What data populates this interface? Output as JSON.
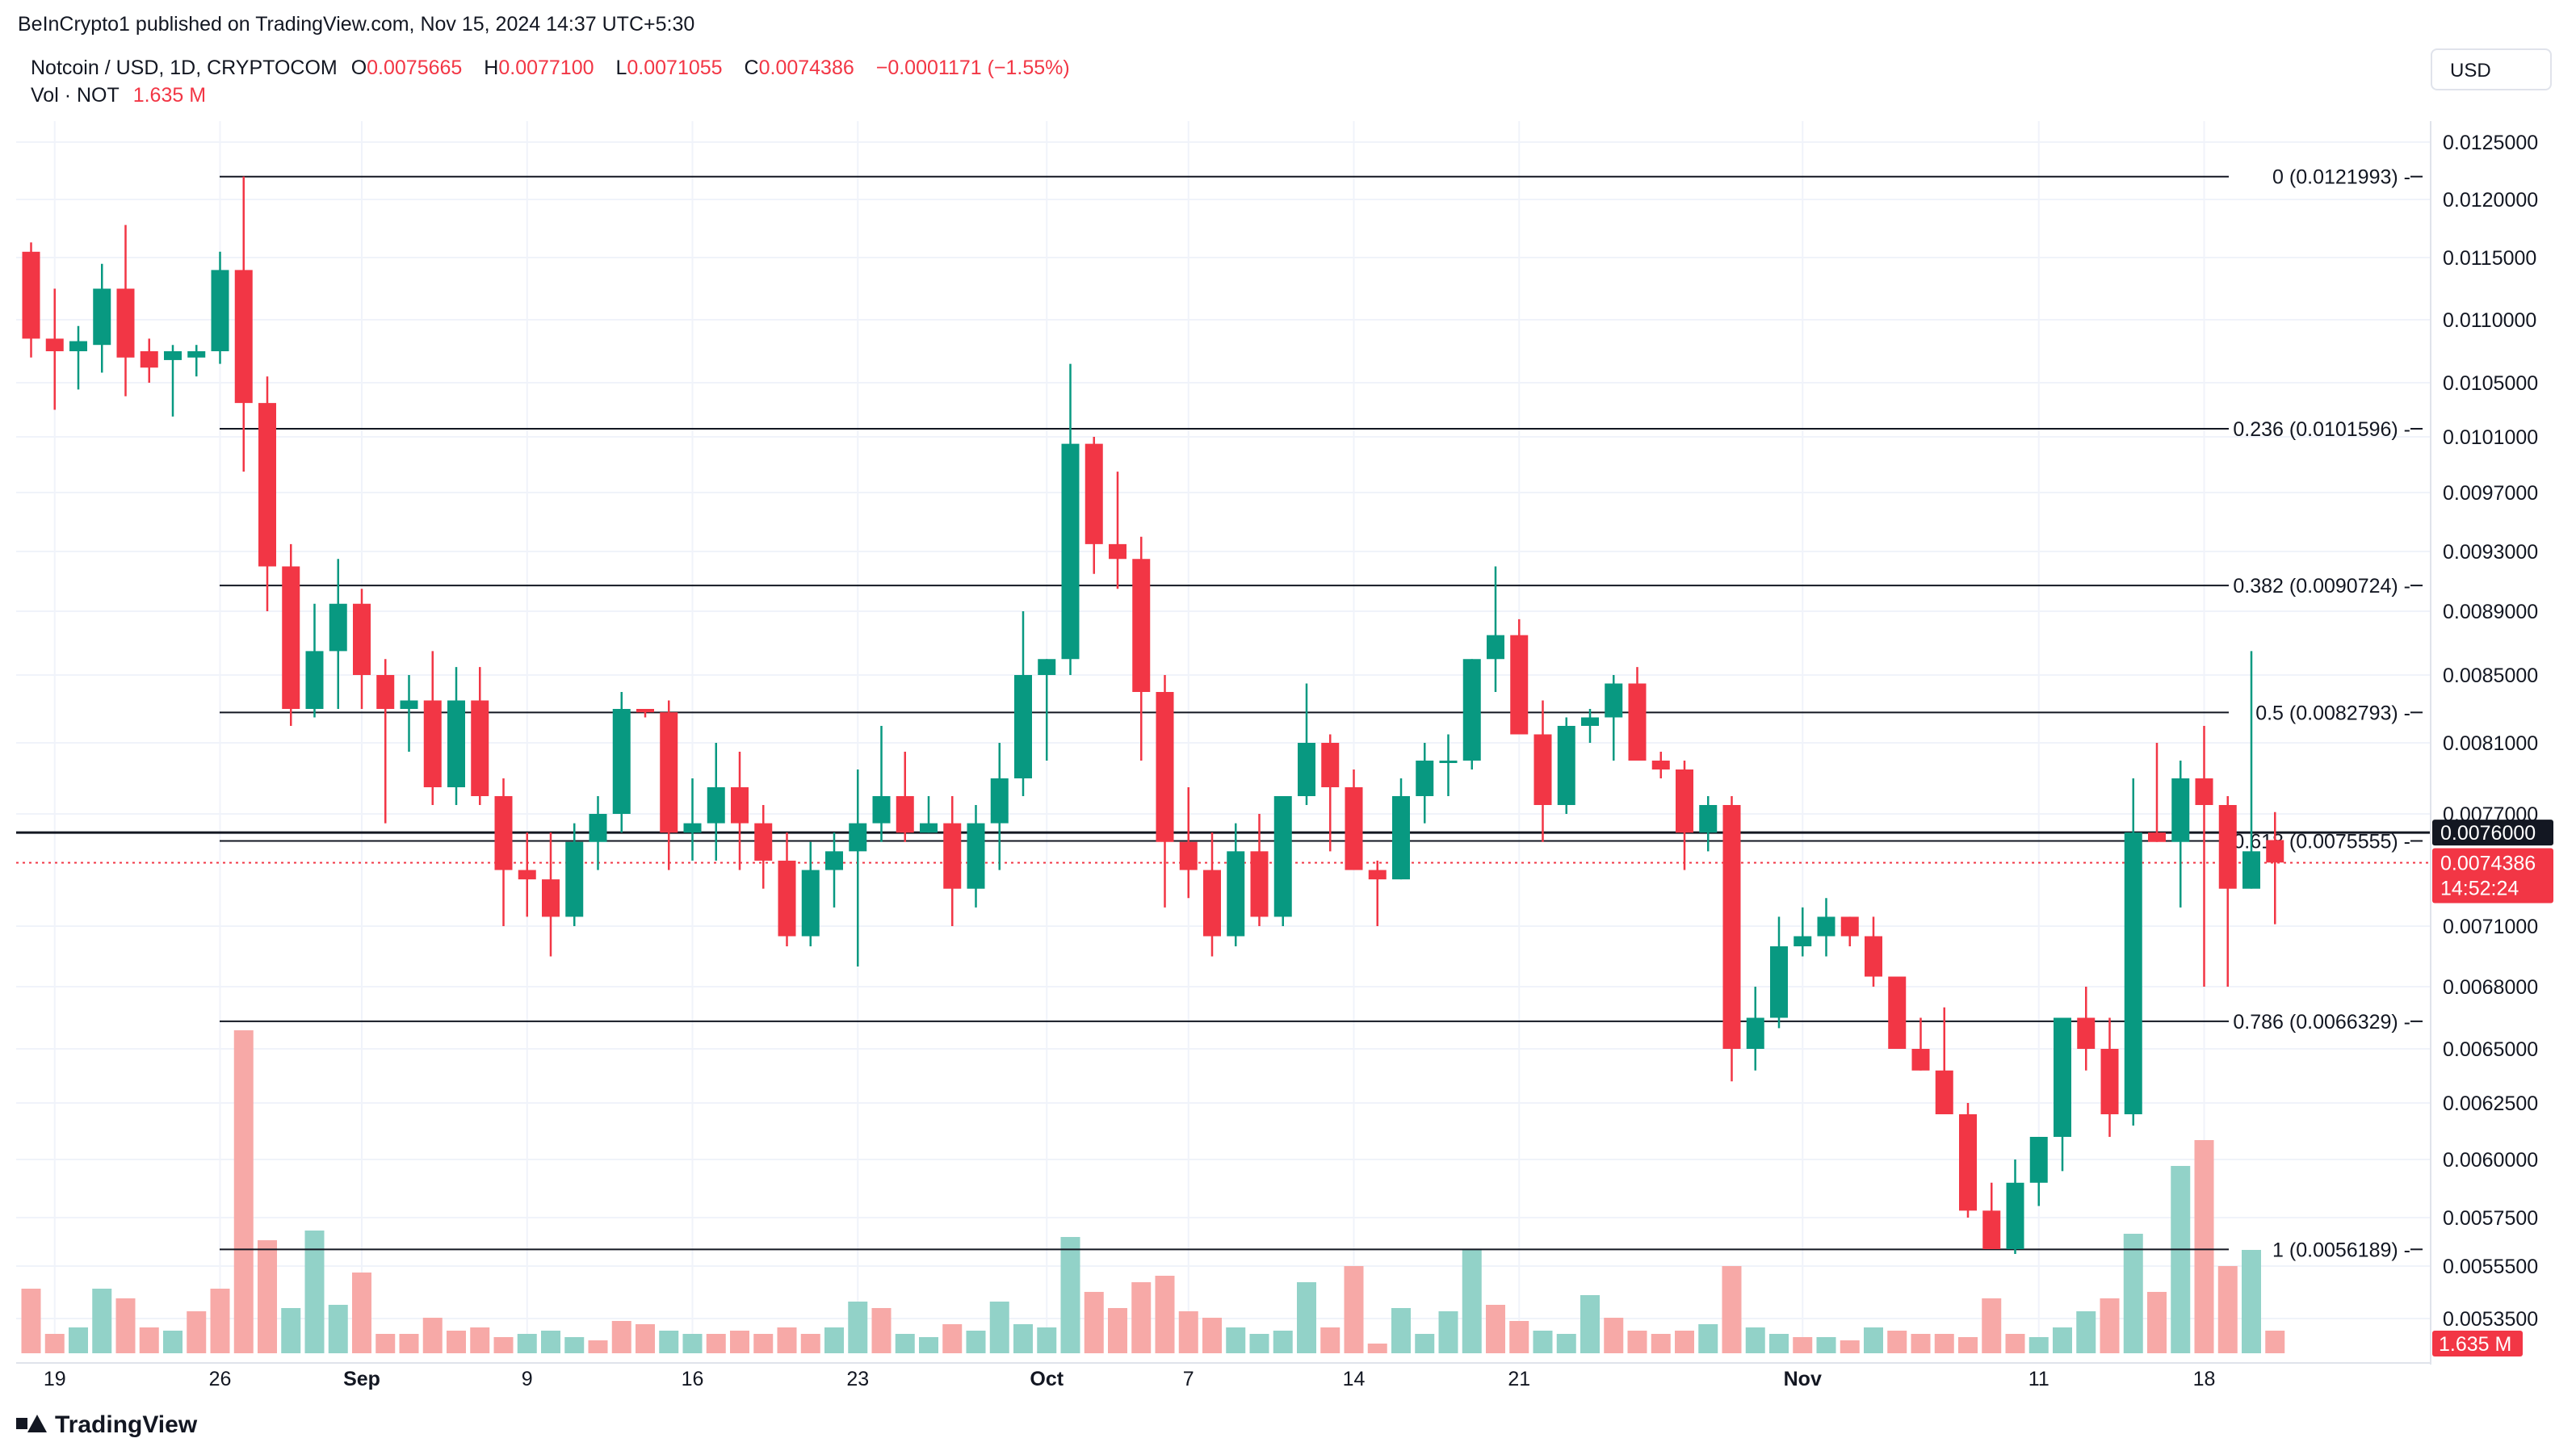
{
  "header": {
    "published": "BeInCrypto1 published on TradingView.com, Nov 15, 2024 14:37 UTC+5:30",
    "symbol": "Notcoin / USD, 1D, CRYPTOCOM",
    "o_label": "O",
    "o_value": "0.0075665",
    "h_label": "H",
    "h_value": "0.0077100",
    "l_label": "L",
    "l_value": "0.0071055",
    "c_label": "C",
    "c_value": "0.0074386",
    "change": "−0.0001171 (−1.55%)",
    "vol_label": "Vol · NOT",
    "vol_value": "1.635 M",
    "currency": "USD"
  },
  "footer": {
    "brand": "TradingView"
  },
  "colors": {
    "up": "#089981",
    "down": "#f23645",
    "up_vol": "#92d2c8",
    "down_vol": "#f7a9a7",
    "grid": "#f0f3fa"
  },
  "chart_data": {
    "type": "candlestick",
    "y_ticks": [
      "0.0125000",
      "0.0120000",
      "0.0115000",
      "0.0110000",
      "0.0105000",
      "0.0101000",
      "0.0097000",
      "0.0093000",
      "0.0089000",
      "0.0085000",
      "0.0081000",
      "0.0077000",
      "0.0071000",
      "0.0068000",
      "0.0065000",
      "0.0062500",
      "0.0060000",
      "0.0057500",
      "0.0055500",
      "0.0053500"
    ],
    "x_ticks": [
      {
        "label": "19",
        "i": 1
      },
      {
        "label": "26",
        "i": 8
      },
      {
        "label": "Sep",
        "i": 14
      },
      {
        "label": "9",
        "i": 21
      },
      {
        "label": "16",
        "i": 28
      },
      {
        "label": "23",
        "i": 35
      },
      {
        "label": "Oct",
        "i": 43
      },
      {
        "label": "7",
        "i": 49
      },
      {
        "label": "14",
        "i": 56
      },
      {
        "label": "21",
        "i": 63
      },
      {
        "label": "Nov",
        "i": 75
      },
      {
        "label": "11",
        "i": 85
      },
      {
        "label": "18",
        "i": 92
      }
    ],
    "fib_levels": [
      {
        "label": "0 (0.0121993)",
        "value": 0.0121993
      },
      {
        "label": "0.236 (0.0101596)",
        "value": 0.0101596
      },
      {
        "label": "0.382 (0.0090724)",
        "value": 0.0090724
      },
      {
        "label": "0.5 (0.0082793)",
        "value": 0.0082793
      },
      {
        "label": "0.618 (0.0075555)",
        "value": 0.0075555
      },
      {
        "label": "0.786 (0.0066329)",
        "value": 0.0066329
      },
      {
        "label": "1 (0.0056189)",
        "value": 0.0056189
      }
    ],
    "horizontal_line": {
      "value": 0.0076,
      "label": "0.0076000"
    },
    "current_price": {
      "value": 0.0074386,
      "label": "0.0074386",
      "countdown": "14:52:24"
    },
    "volume_label": "1.635 M",
    "candles": [
      [
        0.01155,
        0.01163,
        0.0107,
        0.01085
      ],
      [
        0.01085,
        0.01125,
        0.0103,
        0.01075
      ],
      [
        0.01075,
        0.01095,
        0.01045,
        0.01083
      ],
      [
        0.0108,
        0.01145,
        0.01058,
        0.01125
      ],
      [
        0.01125,
        0.01178,
        0.0104,
        0.0107
      ],
      [
        0.01075,
        0.01085,
        0.0105,
        0.01062
      ],
      [
        0.01068,
        0.0108,
        0.01025,
        0.01075
      ],
      [
        0.0107,
        0.0108,
        0.01055,
        0.01075
      ],
      [
        0.01075,
        0.01155,
        0.01065,
        0.0114
      ],
      [
        0.0114,
        0.0122,
        0.00985,
        0.01035
      ],
      [
        0.01035,
        0.01055,
        0.0089,
        0.0092
      ],
      [
        0.0092,
        0.00935,
        0.0082,
        0.0083
      ],
      [
        0.0083,
        0.00895,
        0.00825,
        0.00865
      ],
      [
        0.00865,
        0.00925,
        0.0083,
        0.00895
      ],
      [
        0.00895,
        0.00905,
        0.0083,
        0.0085
      ],
      [
        0.0085,
        0.0086,
        0.00765,
        0.0083
      ],
      [
        0.0083,
        0.0085,
        0.00805,
        0.00835
      ],
      [
        0.00835,
        0.00865,
        0.00775,
        0.00785
      ],
      [
        0.00785,
        0.00855,
        0.00775,
        0.00835
      ],
      [
        0.00835,
        0.00855,
        0.00775,
        0.0078
      ],
      [
        0.0078,
        0.0079,
        0.0071,
        0.0074
      ],
      [
        0.0074,
        0.0076,
        0.00715,
        0.00735
      ],
      [
        0.00735,
        0.0076,
        0.00695,
        0.00715
      ],
      [
        0.00715,
        0.00765,
        0.0071,
        0.00755
      ],
      [
        0.00755,
        0.0078,
        0.0074,
        0.0077
      ],
      [
        0.0077,
        0.0084,
        0.0076,
        0.0083
      ],
      [
        0.0083,
        0.0083,
        0.00825,
        0.00828
      ],
      [
        0.00828,
        0.00835,
        0.0074,
        0.0076
      ],
      [
        0.0076,
        0.0079,
        0.00745,
        0.00765
      ],
      [
        0.00765,
        0.0081,
        0.00745,
        0.00785
      ],
      [
        0.00785,
        0.00805,
        0.0074,
        0.00765
      ],
      [
        0.00765,
        0.00775,
        0.0073,
        0.00745
      ],
      [
        0.00745,
        0.0076,
        0.007,
        0.00705
      ],
      [
        0.00705,
        0.00755,
        0.007,
        0.0074
      ],
      [
        0.0074,
        0.0076,
        0.0072,
        0.0075
      ],
      [
        0.0075,
        0.00795,
        0.0069,
        0.00765
      ],
      [
        0.00765,
        0.0082,
        0.00755,
        0.0078
      ],
      [
        0.0078,
        0.00805,
        0.00755,
        0.0076
      ],
      [
        0.0076,
        0.0078,
        0.0076,
        0.00765
      ],
      [
        0.00765,
        0.0078,
        0.0071,
        0.0073
      ],
      [
        0.0073,
        0.00775,
        0.0072,
        0.00765
      ],
      [
        0.00765,
        0.0081,
        0.0074,
        0.0079
      ],
      [
        0.0079,
        0.0089,
        0.0078,
        0.0085
      ],
      [
        0.0085,
        0.0086,
        0.008,
        0.0086
      ],
      [
        0.0086,
        0.01065,
        0.0085,
        0.01005
      ],
      [
        0.01005,
        0.0101,
        0.00915,
        0.00935
      ],
      [
        0.00935,
        0.00985,
        0.00905,
        0.00925
      ],
      [
        0.00925,
        0.0094,
        0.008,
        0.0084
      ],
      [
        0.0084,
        0.0085,
        0.0072,
        0.00755
      ],
      [
        0.00755,
        0.00785,
        0.00725,
        0.0074
      ],
      [
        0.0074,
        0.0076,
        0.00695,
        0.00705
      ],
      [
        0.00705,
        0.00765,
        0.007,
        0.0075
      ],
      [
        0.0075,
        0.0077,
        0.0071,
        0.00715
      ],
      [
        0.00715,
        0.0078,
        0.0071,
        0.0078
      ],
      [
        0.0078,
        0.00845,
        0.00775,
        0.0081
      ],
      [
        0.0081,
        0.00815,
        0.0075,
        0.00785
      ],
      [
        0.00785,
        0.00795,
        0.0074,
        0.0074
      ],
      [
        0.0074,
        0.00745,
        0.0071,
        0.00735
      ],
      [
        0.00735,
        0.0079,
        0.00735,
        0.0078
      ],
      [
        0.0078,
        0.0081,
        0.00765,
        0.008
      ],
      [
        0.008,
        0.00815,
        0.0078,
        0.008
      ],
      [
        0.008,
        0.0086,
        0.00795,
        0.0086
      ],
      [
        0.0086,
        0.0092,
        0.0084,
        0.00875
      ],
      [
        0.00875,
        0.00885,
        0.00815,
        0.00815
      ],
      [
        0.00815,
        0.00835,
        0.00755,
        0.00775
      ],
      [
        0.00775,
        0.00825,
        0.0077,
        0.0082
      ],
      [
        0.0082,
        0.0083,
        0.0081,
        0.00825
      ],
      [
        0.00825,
        0.0085,
        0.008,
        0.00845
      ],
      [
        0.00845,
        0.00855,
        0.008,
        0.008
      ],
      [
        0.008,
        0.00805,
        0.0079,
        0.00795
      ],
      [
        0.00795,
        0.008,
        0.0074,
        0.0076
      ],
      [
        0.0076,
        0.0078,
        0.0075,
        0.00775
      ],
      [
        0.00775,
        0.0078,
        0.00635,
        0.0065
      ],
      [
        0.0065,
        0.0068,
        0.0064,
        0.00665
      ],
      [
        0.00665,
        0.00715,
        0.0066,
        0.007
      ],
      [
        0.007,
        0.0072,
        0.00695,
        0.00705
      ],
      [
        0.00705,
        0.00725,
        0.00695,
        0.00715
      ],
      [
        0.00715,
        0.00715,
        0.007,
        0.00705
      ],
      [
        0.00705,
        0.00715,
        0.0068,
        0.00685
      ],
      [
        0.00685,
        0.00685,
        0.0065,
        0.0065
      ],
      [
        0.0065,
        0.00665,
        0.0064,
        0.0064
      ],
      [
        0.0064,
        0.0067,
        0.0062,
        0.0062
      ],
      [
        0.0062,
        0.00625,
        0.00575,
        0.00578
      ],
      [
        0.00578,
        0.0059,
        0.00562,
        0.00562
      ],
      [
        0.00562,
        0.006,
        0.0056,
        0.0059
      ],
      [
        0.0059,
        0.0061,
        0.0058,
        0.0061
      ],
      [
        0.0061,
        0.00665,
        0.00595,
        0.00665
      ],
      [
        0.00665,
        0.0068,
        0.0064,
        0.0065
      ],
      [
        0.0065,
        0.00665,
        0.0061,
        0.0062
      ],
      [
        0.0062,
        0.0079,
        0.00615,
        0.0076
      ],
      [
        0.0076,
        0.0081,
        0.00755,
        0.00755
      ],
      [
        0.00755,
        0.008,
        0.0072,
        0.0079
      ],
      [
        0.0079,
        0.0082,
        0.0068,
        0.00775
      ],
      [
        0.00775,
        0.0078,
        0.0068,
        0.0073
      ],
      [
        0.0073,
        0.00865,
        0.0073,
        0.0075
      ],
      [
        0.00756,
        0.00771,
        0.00711,
        0.00744
      ]
    ],
    "volume": [
      [
        0.2,
        "down"
      ],
      [
        0.06,
        "down"
      ],
      [
        0.08,
        "up"
      ],
      [
        0.2,
        "up"
      ],
      [
        0.17,
        "down"
      ],
      [
        0.08,
        "down"
      ],
      [
        0.07,
        "up"
      ],
      [
        0.13,
        "down"
      ],
      [
        0.2,
        "down"
      ],
      [
        1.0,
        "down"
      ],
      [
        0.35,
        "down"
      ],
      [
        0.14,
        "up"
      ],
      [
        0.38,
        "up"
      ],
      [
        0.15,
        "up"
      ],
      [
        0.25,
        "down"
      ],
      [
        0.06,
        "down"
      ],
      [
        0.06,
        "down"
      ],
      [
        0.11,
        "down"
      ],
      [
        0.07,
        "down"
      ],
      [
        0.08,
        "down"
      ],
      [
        0.05,
        "down"
      ],
      [
        0.06,
        "up"
      ],
      [
        0.07,
        "up"
      ],
      [
        0.05,
        "up"
      ],
      [
        0.04,
        "down"
      ],
      [
        0.1,
        "down"
      ],
      [
        0.09,
        "down"
      ],
      [
        0.07,
        "up"
      ],
      [
        0.06,
        "up"
      ],
      [
        0.06,
        "down"
      ],
      [
        0.07,
        "down"
      ],
      [
        0.06,
        "down"
      ],
      [
        0.08,
        "down"
      ],
      [
        0.06,
        "down"
      ],
      [
        0.08,
        "up"
      ],
      [
        0.16,
        "up"
      ],
      [
        0.14,
        "down"
      ],
      [
        0.06,
        "up"
      ],
      [
        0.05,
        "up"
      ],
      [
        0.09,
        "down"
      ],
      [
        0.07,
        "up"
      ],
      [
        0.16,
        "up"
      ],
      [
        0.09,
        "up"
      ],
      [
        0.08,
        "up"
      ],
      [
        0.36,
        "up"
      ],
      [
        0.19,
        "down"
      ],
      [
        0.14,
        "down"
      ],
      [
        0.22,
        "down"
      ],
      [
        0.24,
        "down"
      ],
      [
        0.13,
        "down"
      ],
      [
        0.11,
        "down"
      ],
      [
        0.08,
        "up"
      ],
      [
        0.06,
        "up"
      ],
      [
        0.07,
        "up"
      ],
      [
        0.22,
        "up"
      ],
      [
        0.08,
        "down"
      ],
      [
        0.27,
        "down"
      ],
      [
        0.03,
        "down"
      ],
      [
        0.14,
        "up"
      ],
      [
        0.06,
        "up"
      ],
      [
        0.13,
        "up"
      ],
      [
        0.32,
        "up"
      ],
      [
        0.15,
        "down"
      ],
      [
        0.1,
        "down"
      ],
      [
        0.07,
        "up"
      ],
      [
        0.06,
        "up"
      ],
      [
        0.18,
        "up"
      ],
      [
        0.11,
        "down"
      ],
      [
        0.07,
        "down"
      ],
      [
        0.06,
        "down"
      ],
      [
        0.07,
        "down"
      ],
      [
        0.09,
        "up"
      ],
      [
        0.27,
        "down"
      ],
      [
        0.08,
        "up"
      ],
      [
        0.06,
        "up"
      ],
      [
        0.05,
        "down"
      ],
      [
        0.05,
        "up"
      ],
      [
        0.04,
        "down"
      ],
      [
        0.08,
        "up"
      ],
      [
        0.07,
        "down"
      ],
      [
        0.06,
        "down"
      ],
      [
        0.06,
        "down"
      ],
      [
        0.05,
        "down"
      ],
      [
        0.17,
        "down"
      ],
      [
        0.06,
        "down"
      ],
      [
        0.05,
        "up"
      ],
      [
        0.08,
        "up"
      ],
      [
        0.13,
        "up"
      ],
      [
        0.17,
        "down"
      ],
      [
        0.37,
        "up"
      ],
      [
        0.19,
        "down"
      ],
      [
        0.58,
        "up"
      ],
      [
        0.66,
        "down"
      ],
      [
        0.27,
        "down"
      ],
      [
        0.32,
        "up"
      ],
      [
        0.07,
        "down"
      ]
    ]
  }
}
